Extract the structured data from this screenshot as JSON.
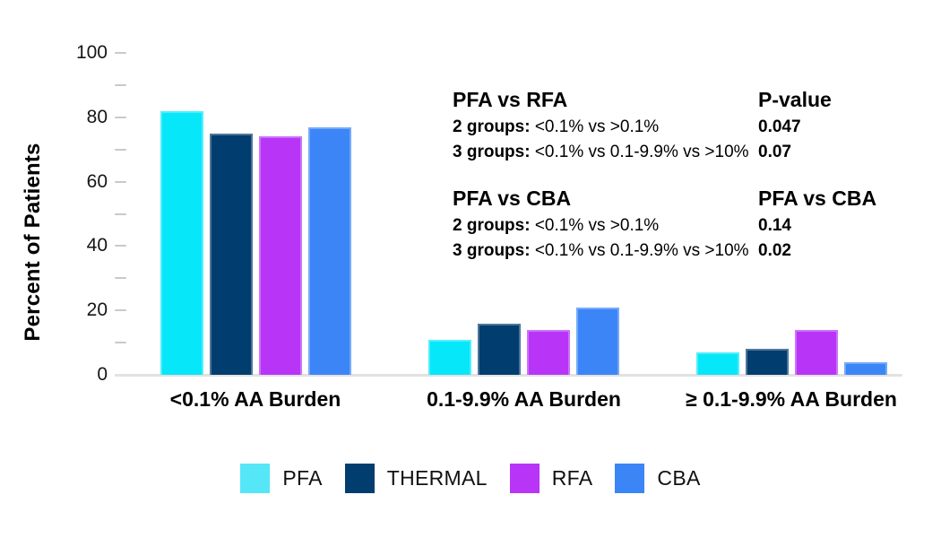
{
  "chart_data": {
    "type": "bar",
    "title": "",
    "ylabel": "Percent of Patients",
    "xlabel": "",
    "ylim": [
      0,
      100
    ],
    "ytick_step_major": 20,
    "ytick_step_minor": 10,
    "grid": false,
    "legend_position": "bottom",
    "categories": [
      "<0.1% AA Burden",
      "0.1-9.9% AA Burden",
      "≥ 0.1-9.9% AA Burden"
    ],
    "series": [
      {
        "name": "PFA",
        "color": "#06E7F9",
        "legend_color": "#55E6F8",
        "values": [
          82,
          11,
          7
        ]
      },
      {
        "name": "THERMAL",
        "color": "#023D6F",
        "legend_color": "#023D6F",
        "values": [
          75,
          16,
          8
        ]
      },
      {
        "name": "RFA",
        "color": "#B835F8",
        "legend_color": "#B835F8",
        "values": [
          74,
          14,
          14
        ]
      },
      {
        "name": "CBA",
        "color": "#3B85F7",
        "legend_color": "#3B85F7",
        "values": [
          77,
          21,
          4
        ]
      }
    ]
  },
  "annotations": {
    "block1": {
      "heading_left": "PFA vs RFA",
      "heading_right": "P-value",
      "rows": [
        {
          "label": "2 groups:",
          "text": " <0.1% vs >0.1%",
          "value": "0.047"
        },
        {
          "label": "3 groups:",
          "text": " <0.1% vs 0.1-9.9% vs >10%",
          "value": "0.07"
        }
      ]
    },
    "block2": {
      "heading_left": "PFA vs CBA",
      "heading_right": "PFA vs CBA",
      "rows": [
        {
          "label": "2 groups:",
          "text": " <0.1% vs >0.1%",
          "value": "0.14"
        },
        {
          "label": "3 groups:",
          "text": " <0.1% vs 0.1-9.9% vs >10%",
          "value": "0.02"
        }
      ]
    }
  }
}
